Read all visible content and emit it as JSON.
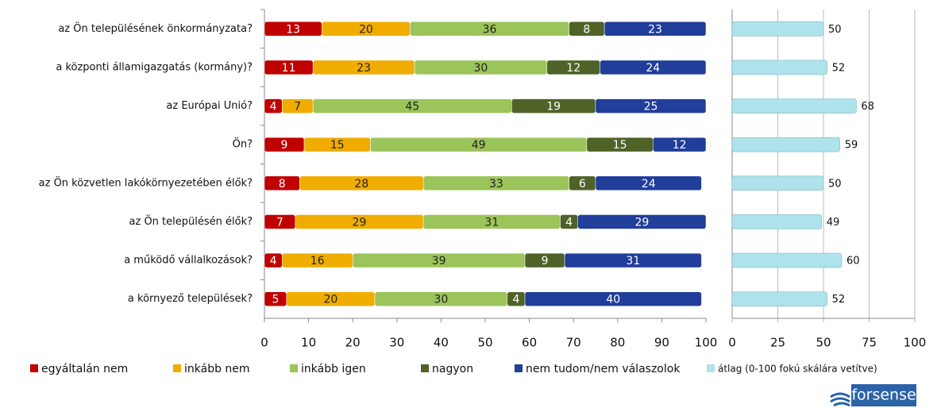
{
  "chart_data": [
    {
      "type": "stacked-bar",
      "categories": [
        "az Ön településének önkormányzata?",
        "a központi államigazgatás (kormány)?",
        "az Európai Unió?",
        "Ön?",
        "az Ön közvetlen lakókörnyezetében élők?",
        "az Ön településén élők?",
        "a működő vállalkozások?",
        "a környező települések?"
      ],
      "series": [
        {
          "name": "egyáltalán nem",
          "color": "#c00000",
          "values": [
            13,
            11,
            4,
            9,
            8,
            7,
            4,
            5
          ]
        },
        {
          "name": "inkább nem",
          "color": "#f0ad00",
          "values": [
            20,
            23,
            7,
            15,
            28,
            29,
            16,
            20
          ]
        },
        {
          "name": "inkább igen",
          "color": "#9bc45a",
          "values": [
            36,
            30,
            45,
            49,
            33,
            31,
            39,
            30
          ]
        },
        {
          "name": "nagyon",
          "color": "#4f6228",
          "values": [
            8,
            12,
            19,
            15,
            6,
            4,
            9,
            4
          ]
        },
        {
          "name": "nem tudom/nem válaszolok",
          "color": "#203e9a",
          "values": [
            23,
            24,
            25,
            12,
            24,
            29,
            31,
            40
          ]
        }
      ],
      "xlim": [
        0,
        100
      ],
      "xticks": [
        0,
        10,
        20,
        30,
        40,
        50,
        60,
        70,
        80,
        90,
        100
      ],
      "grid": false
    },
    {
      "type": "bar",
      "series": [
        {
          "name": "átlag (0-100 fokú skálára vetítve)",
          "color": "#aee3ec",
          "values": [
            50,
            52,
            68,
            59,
            50,
            49,
            60,
            52
          ]
        }
      ],
      "xlim": [
        0,
        100
      ],
      "xticks": [
        0,
        25,
        50,
        75,
        100
      ],
      "grid": true
    }
  ],
  "logo": "forsense"
}
